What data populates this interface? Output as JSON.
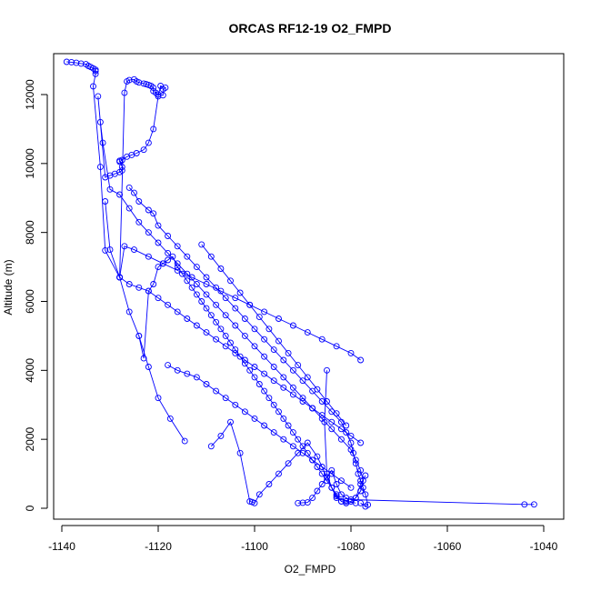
{
  "chart_data": {
    "type": "line",
    "title": "ORCAS RF12-19 O2_FMPD",
    "xlabel": "O2_FMPD",
    "ylabel": "Altitude (m)",
    "xlim": [
      -1140,
      -1040
    ],
    "ylim": [
      0,
      13000
    ],
    "xticks": [
      -1140,
      -1120,
      -1100,
      -1080,
      -1060,
      -1040
    ],
    "yticks": [
      0,
      2000,
      4000,
      6000,
      8000,
      10000,
      12000
    ],
    "grid": false,
    "legend": "none",
    "marker": "open-circle",
    "color": "#0000ff",
    "series": [
      {
        "x": [
          -1139,
          -1138,
          -1137,
          -1136,
          -1135,
          -1134.5,
          -1134,
          -1133.5,
          -1133,
          -1133,
          -1133,
          -1133.5,
          -1132,
          -1131,
          -1128,
          -1127,
          -1126.5,
          -1126,
          -1125,
          -1124.5,
          -1124,
          -1123,
          -1122.5,
          -1122,
          -1121.5,
          -1121,
          -1121,
          -1120.5,
          -1120,
          -1119,
          -1119,
          -1118.5,
          -1119.5,
          -1120,
          -1121,
          -1122,
          -1123,
          -1124.5,
          -1125.5,
          -1126.5,
          -1127.5,
          -1128,
          -1128,
          -1127.5,
          -1127.5,
          -1128,
          -1129,
          -1130,
          -1131,
          -1132.5,
          -1132,
          -1131.5,
          -1130,
          -1128,
          -1126,
          -1124,
          -1122,
          -1120,
          -1118,
          -1116,
          -1114,
          -1112,
          -1110,
          -1108,
          -1106,
          -1104,
          -1102,
          -1100,
          -1098,
          -1096,
          -1094,
          -1092,
          -1090,
          -1088,
          -1086,
          -1084,
          -1082,
          -1080,
          -1079,
          -1078,
          -1077.5,
          -1078,
          -1079,
          -1080,
          -1081,
          -1082,
          -1083,
          -1084,
          -1085,
          -1085.5,
          -1085
        ],
        "y": [
          12950,
          12940,
          12920,
          12900,
          12880,
          12830,
          12800,
          12760,
          12720,
          12680,
          12600,
          12240,
          9900,
          7480,
          6700,
          12050,
          12380,
          12420,
          12440,
          12380,
          12350,
          12320,
          12300,
          12280,
          12250,
          12200,
          12100,
          12050,
          12000,
          11980,
          12150,
          12200,
          12250,
          11950,
          11000,
          10600,
          10400,
          10300,
          10250,
          10200,
          10100,
          10050,
          10080,
          9900,
          9800,
          9750,
          9700,
          9650,
          9600,
          11950,
          11200,
          10600,
          9250,
          9100,
          8700,
          8300,
          8000,
          7700,
          7400,
          7100,
          6800,
          6500,
          6200,
          5900,
          5600,
          5300,
          5000,
          4700,
          4400,
          4100,
          3800,
          3500,
          3200,
          2900,
          2600,
          2300,
          2000,
          1700,
          1400,
          1100,
          800,
          500,
          300,
          200,
          150,
          200,
          350,
          600,
          1000,
          2500,
          4000
        ]
      },
      {
        "x": [
          -1126,
          -1125,
          -1124,
          -1122,
          -1121,
          -1120,
          -1118,
          -1116,
          -1114,
          -1112,
          -1110,
          -1108,
          -1106,
          -1104,
          -1102,
          -1100,
          -1098,
          -1096,
          -1094,
          -1092,
          -1090,
          -1088,
          -1086,
          -1084,
          -1082,
          -1081,
          -1080,
          -1079.5,
          -1079,
          -1078.5,
          -1078,
          -1077.5,
          -1077,
          -1076.5,
          -1077,
          -1078
        ],
        "y": [
          9300,
          9150,
          8900,
          8650,
          8550,
          8200,
          7900,
          7600,
          7300,
          7000,
          6700,
          6400,
          6100,
          5800,
          5500,
          5200,
          4900,
          4600,
          4300,
          4000,
          3700,
          3400,
          3100,
          2800,
          2500,
          2200,
          1900,
          1600,
          1300,
          1000,
          800,
          600,
          400,
          100,
          50,
          150
        ]
      },
      {
        "x": [
          -1131,
          -1130,
          -1128,
          -1126,
          -1124,
          -1122,
          -1120,
          -1118,
          -1116,
          -1114,
          -1112,
          -1110,
          -1108,
          -1106,
          -1104,
          -1102,
          -1100,
          -1098,
          -1096,
          -1094,
          -1092,
          -1090,
          -1088,
          -1086,
          -1084,
          -1082,
          -1080,
          -1078
        ],
        "y": [
          8900,
          7500,
          6700,
          6500,
          6400,
          6300,
          6100,
          5900,
          5700,
          5500,
          5300,
          5100,
          4900,
          4700,
          4500,
          4300,
          4100,
          3900,
          3700,
          3500,
          3300,
          3100,
          2900,
          2700,
          2500,
          2300,
          2100,
          1900
        ]
      },
      {
        "x": [
          -1124,
          -1123,
          -1122,
          -1121,
          -1120,
          -1119,
          -1118,
          -1117,
          -1116,
          -1115,
          -1114,
          -1113,
          -1112,
          -1111,
          -1110,
          -1109,
          -1108,
          -1107,
          -1106,
          -1105,
          -1104,
          -1103,
          -1102,
          -1101,
          -1100,
          -1099,
          -1098,
          -1097,
          -1096,
          -1095,
          -1094,
          -1093,
          -1092,
          -1091,
          -1090,
          -1089,
          -1088,
          -1087,
          -1086,
          -1085,
          -1084,
          -1083,
          -1082,
          -1081,
          -1080,
          -1079,
          -1078,
          -1077
        ],
        "y": [
          5000,
          4350,
          6300,
          6500,
          7000,
          7100,
          7200,
          7300,
          7000,
          6800,
          6600,
          6400,
          6200,
          6000,
          5800,
          5600,
          5400,
          5200,
          5000,
          4800,
          4600,
          4400,
          4200,
          4000,
          3800,
          3600,
          3400,
          3200,
          3000,
          2800,
          2600,
          2400,
          2200,
          2000,
          1800,
          1600,
          1400,
          1200,
          1000,
          800,
          600,
          400,
          200,
          150,
          200,
          300,
          700,
          950
        ]
      },
      {
        "x": [
          -1118,
          -1116,
          -1114,
          -1112,
          -1110,
          -1108,
          -1106,
          -1104,
          -1102,
          -1100,
          -1098,
          -1096,
          -1094,
          -1092,
          -1090,
          -1088,
          -1086,
          -1084,
          -1082,
          -1080
        ],
        "y": [
          4150,
          4000,
          3900,
          3800,
          3600,
          3400,
          3200,
          3000,
          2800,
          2600,
          2400,
          2200,
          2000,
          1800,
          1600,
          1400,
          1200,
          1000,
          800,
          600
        ]
      },
      {
        "x": [
          -1114.5,
          -1117.5,
          -1120,
          -1122,
          -1124,
          -1126,
          -1128,
          -1127,
          -1125,
          -1122,
          -1119,
          -1116,
          -1113,
          -1110,
          -1107,
          -1104,
          -1101,
          -1098,
          -1095,
          -1092,
          -1089,
          -1086,
          -1083,
          -1080,
          -1078
        ],
        "y": [
          1950,
          2600,
          3200,
          4100,
          5000,
          5700,
          6700,
          7600,
          7500,
          7300,
          7100,
          6900,
          6700,
          6500,
          6300,
          6100,
          5900,
          5700,
          5500,
          5300,
          5100,
          4900,
          4700,
          4500,
          4300
        ]
      },
      {
        "x": [
          -1109,
          -1107,
          -1105,
          -1103,
          -1101,
          -1100.5,
          -1100,
          -1099,
          -1097,
          -1095,
          -1093,
          -1091,
          -1089,
          -1087,
          -1085,
          -1083,
          -1081,
          -1079
        ],
        "y": [
          1800,
          2100,
          2500,
          1600,
          200,
          180,
          150,
          400,
          700,
          1000,
          1300,
          1600,
          1900,
          1500,
          900,
          300,
          200,
          150
        ]
      },
      {
        "x": [
          -1091,
          -1090,
          -1089,
          -1088,
          -1087,
          -1086,
          -1085,
          -1084,
          -1083,
          -1082,
          -1081,
          -1080,
          -1044,
          -1042
        ],
        "y": [
          150,
          160,
          170,
          300,
          500,
          700,
          900,
          1100,
          700,
          400,
          300,
          250,
          110,
          110
        ]
      },
      {
        "x": [
          -1111,
          -1109,
          -1107,
          -1105,
          -1103,
          -1101,
          -1099,
          -1097,
          -1095,
          -1093,
          -1091,
          -1089,
          -1087,
          -1085,
          -1083,
          -1081
        ],
        "y": [
          7650,
          7300,
          6950,
          6600,
          6250,
          5900,
          5550,
          5200,
          4850,
          4500,
          4150,
          3800,
          3450,
          3100,
          2750,
          2400
        ]
      }
    ]
  }
}
